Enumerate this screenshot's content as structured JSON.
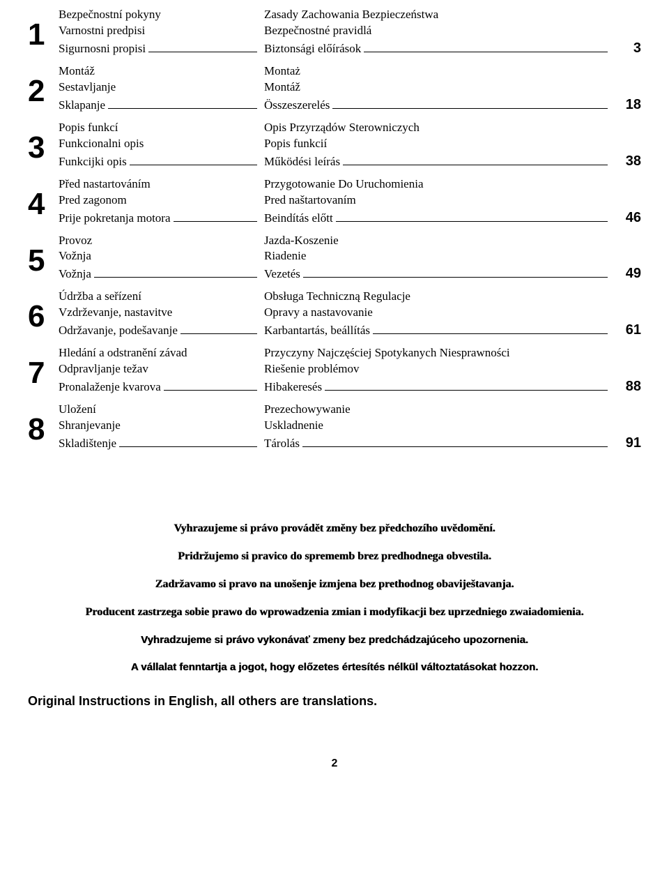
{
  "toc": [
    {
      "num": "1",
      "page": "3",
      "rows": [
        {
          "left": "Bezpečnostní pokyny",
          "right": "Zasady Zachowania Bezpieczeństwa"
        },
        {
          "left": "Varnostni predpisi",
          "right": "Bezpečnostné pravidlá"
        },
        {
          "left": "Sigurnosni propisi",
          "right": "Biztonsági előírások"
        }
      ]
    },
    {
      "num": "2",
      "page": "18",
      "rows": [
        {
          "left": "Montáž",
          "right": "Montaż"
        },
        {
          "left": "Sestavljanje",
          "right": "Montáž"
        },
        {
          "left": "Sklapanje",
          "right": "Összeszerelés"
        }
      ]
    },
    {
      "num": "3",
      "page": "38",
      "rows": [
        {
          "left": "Popis funkcí",
          "right": "Opis Przyrządów Sterowniczych"
        },
        {
          "left": "Funkcionalni opis",
          "right": "Popis funkcií"
        },
        {
          "left": "Funkcijki opis",
          "right": "Működési leírás"
        }
      ]
    },
    {
      "num": "4",
      "page": "46",
      "rows": [
        {
          "left": "Před nastartováním",
          "right": "Przygotowanie Do Uruchomienia"
        },
        {
          "left": "Pred zagonom",
          "right": "Pred naštartovaním"
        },
        {
          "left": "Prije pokretanja motora",
          "right": "Beindítás előtt"
        }
      ]
    },
    {
      "num": "5",
      "page": "49",
      "rows": [
        {
          "left": "Provoz",
          "right": "Jazda-Koszenie"
        },
        {
          "left": "Vožnja",
          "right": "Riadenie"
        },
        {
          "left": "Vožnja",
          "right": "Vezetés"
        }
      ]
    },
    {
      "num": "6",
      "page": "61",
      "rows": [
        {
          "left": "Údržba a seřízení",
          "right": "Obsługa Techniczną Regulacje"
        },
        {
          "left": "Vzdrževanje, nastavitve",
          "right": "Opravy a nastavovanie"
        },
        {
          "left": "Održavanje, podešavanje",
          "right": "Karbantartás, beállítás"
        }
      ]
    },
    {
      "num": "7",
      "page": "88",
      "rows": [
        {
          "left": "Hledání a odstranění závad",
          "right": "Przyczyny Najczęściej Spotykanych Niesprawności"
        },
        {
          "left": "Odpravljanje težav",
          "right": "Riešenie problémov"
        },
        {
          "left": "Pronalaženje kvarova",
          "right": "Hibakeresés"
        }
      ]
    },
    {
      "num": "8",
      "page": "91",
      "rows": [
        {
          "left": "Uložení",
          "right": "Prezechowywanie"
        },
        {
          "left": "Shranjevanje",
          "right": "Uskladnenie"
        },
        {
          "left": "Skladištenje",
          "right": "Tárolás"
        }
      ]
    }
  ],
  "disclaimers": [
    {
      "text": "Vyhrazujeme si právo provádět změny bez předchozího uvědomění.",
      "serif": true
    },
    {
      "text": "Pridržujemo si pravico do sprememb brez predhodnega obvestila.",
      "serif": true
    },
    {
      "text": "Zadržavamo si pravo na unošenje izmjena bez prethodnog obaviještavanja.",
      "serif": true
    },
    {
      "text": "Producent zastrzega sobie prawo do wprowadzenia zmian i modyfikacji bez uprzedniego zwaiadomienia.",
      "serif": true
    },
    {
      "text": "Vyhradzujeme si právo vykonávať zmeny bez predchádzajúceho upozornenia.",
      "serif": false
    },
    {
      "text": "A vállalat fenntartja a jogot, hogy előzetes értesítés nélkül változtatásokat hozzon.",
      "serif": false
    }
  ],
  "original_note": "Original Instructions in English, all others are translations.",
  "page_footer": "2"
}
